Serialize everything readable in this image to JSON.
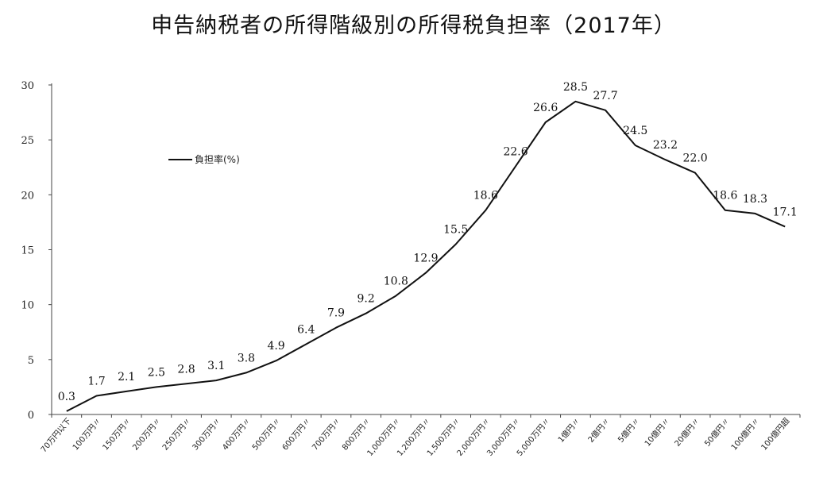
{
  "title": "申告納税者の所得階級別の所得税負担率（2017年）",
  "chart_data": {
    "type": "line",
    "title": "申告納税者の所得階級別の所得税負担率（2017年）",
    "categories": [
      "70万円以下",
      "100万円〃",
      "150万円〃",
      "200万円〃",
      "250万円〃",
      "300万円〃",
      "400万円〃",
      "500万円〃",
      "600万円〃",
      "700万円〃",
      "800万円〃",
      "1,000万円〃",
      "1,200万円〃",
      "1,500万円〃",
      "2,000万円〃",
      "3,000万円〃",
      "5,000万円〃",
      "1億円〃",
      "2億円〃",
      "5億円〃",
      "10億円〃",
      "20億円〃",
      "50億円〃",
      "100億円〃",
      "100億円超"
    ],
    "series": [
      {
        "name": "負担率(%)",
        "values": [
          0.3,
          1.7,
          2.1,
          2.5,
          2.8,
          3.1,
          3.8,
          4.9,
          6.4,
          7.9,
          9.2,
          10.8,
          12.9,
          15.5,
          18.6,
          22.6,
          26.6,
          28.5,
          27.7,
          24.5,
          23.2,
          22.0,
          18.6,
          18.3,
          17.1
        ],
        "labels": [
          "0.3",
          "1.7",
          "2.1",
          "2.5",
          "2.8",
          "3.1",
          "3.8",
          "4.9",
          "6.4",
          "7.9",
          "9.2",
          "10.8",
          "12.9",
          "15.5",
          "18.6",
          "22.6",
          "26.6",
          "28.5",
          "27.7",
          "24.5",
          "23.2",
          "22.0",
          "18.6",
          "18.3",
          "17.1"
        ]
      }
    ],
    "ylim": [
      0,
      30
    ],
    "yticks": [
      0,
      5,
      10,
      15,
      20,
      25,
      30
    ],
    "legend_position": "left",
    "grid": false
  }
}
